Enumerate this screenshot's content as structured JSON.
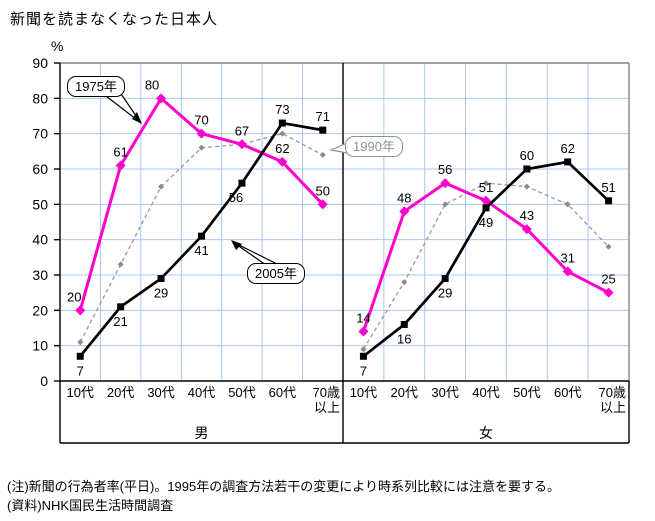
{
  "title": "新聞を読まなくなった日本人",
  "y_axis": {
    "unit": "%",
    "ticks": [
      90,
      80,
      70,
      60,
      50,
      40,
      30,
      20,
      10,
      0
    ]
  },
  "chart_data": {
    "type": "line",
    "title": "新聞を読まなくなった日本人",
    "ylabel": "%",
    "ylim": [
      0,
      90
    ],
    "grid": true,
    "legend_position": "inline-callouts",
    "categories": [
      "10代",
      "20代",
      "30代",
      "40代",
      "50代",
      "60代",
      "70歳以上"
    ],
    "groups": [
      {
        "label": "男",
        "series": [
          {
            "name": "1975年",
            "values": [
              20,
              61,
              80,
              70,
              67,
              62,
              50
            ],
            "data_labels": true
          },
          {
            "name": "1990年",
            "values": [
              11,
              33,
              55,
              66,
              67,
              70,
              64
            ],
            "data_labels": false,
            "estimated": true
          },
          {
            "name": "2005年",
            "values": [
              7,
              21,
              29,
              41,
              56,
              73,
              71
            ],
            "data_labels": true
          }
        ]
      },
      {
        "label": "女",
        "series": [
          {
            "name": "1975年",
            "values": [
              14,
              48,
              56,
              51,
              43,
              31,
              25
            ],
            "data_labels": true
          },
          {
            "name": "1990年",
            "values": [
              9,
              28,
              50,
              56,
              55,
              50,
              38
            ],
            "data_labels": false,
            "estimated": true
          },
          {
            "name": "2005年",
            "values": [
              7,
              16,
              29,
              49,
              60,
              62,
              51
            ],
            "data_labels": true
          }
        ]
      }
    ]
  },
  "callouts": [
    {
      "label": "1975年"
    },
    {
      "label": "1990年"
    },
    {
      "label": "2005年"
    }
  ],
  "notes": [
    "(注)新聞の行為者率(平日)。1995年の調査方法若干の変更により時系列比較には注意を要する。",
    "(資料)NHK国民生活時間調査"
  ],
  "colors": {
    "series_1975": "#FF00CC",
    "series_1990": "#999999",
    "series_2005": "#000000",
    "gridline": "#A5C9F2",
    "frame_gray": "#848484",
    "callout_gray": "#909090"
  }
}
